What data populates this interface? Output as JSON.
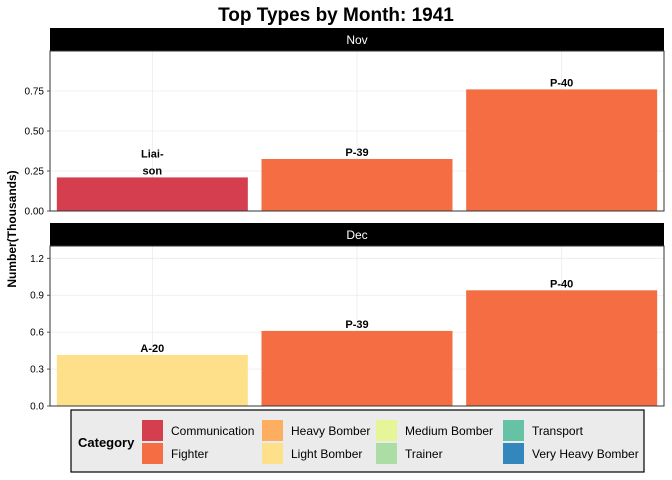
{
  "chart_data": {
    "type": "bar",
    "title": "Top Types by Month: 1941",
    "ylabel": "Number(Thousands)",
    "xlabel": "",
    "panels": [
      {
        "strip": "Nov",
        "ylim": [
          0,
          1.0
        ],
        "yticks": [
          "0.00",
          "0.25",
          "0.50",
          "0.75"
        ],
        "ytick_values": [
          0,
          0.25,
          0.5,
          0.75
        ],
        "bars": [
          {
            "label_lines": [
              "Liai-",
              "son"
            ],
            "value": 0.21,
            "category": "Communication"
          },
          {
            "label_lines": [
              "P-39"
            ],
            "value": 0.325,
            "category": "Fighter"
          },
          {
            "label_lines": [
              "P-40"
            ],
            "value": 0.76,
            "category": "Fighter"
          }
        ]
      },
      {
        "strip": "Dec",
        "ylim": [
          0,
          1.3
        ],
        "yticks": [
          "0.0",
          "0.3",
          "0.6",
          "0.9",
          "1.2"
        ],
        "ytick_values": [
          0,
          0.3,
          0.6,
          0.9,
          1.2
        ],
        "bars": [
          {
            "label_lines": [
              "A-20"
            ],
            "value": 0.415,
            "category": "Light Bomber"
          },
          {
            "label_lines": [
              "P-39"
            ],
            "value": 0.61,
            "category": "Fighter"
          },
          {
            "label_lines": [
              "P-40"
            ],
            "value": 0.94,
            "category": "Fighter"
          }
        ]
      }
    ],
    "legend": {
      "title": "Category",
      "position": "bottom",
      "items": [
        {
          "name": "Communication",
          "color": "#D53E4F"
        },
        {
          "name": "Fighter",
          "color": "#F46D43"
        },
        {
          "name": "Heavy Bomber",
          "color": "#FDAE61"
        },
        {
          "name": "Light Bomber",
          "color": "#FEE08B"
        },
        {
          "name": "Medium Bomber",
          "color": "#E6F598"
        },
        {
          "name": "Trainer",
          "color": "#ABDDA4"
        },
        {
          "name": "Transport",
          "color": "#66C2A5"
        },
        {
          "name": "Very Heavy Bomber",
          "color": "#3288BD"
        }
      ]
    },
    "grid": true
  }
}
